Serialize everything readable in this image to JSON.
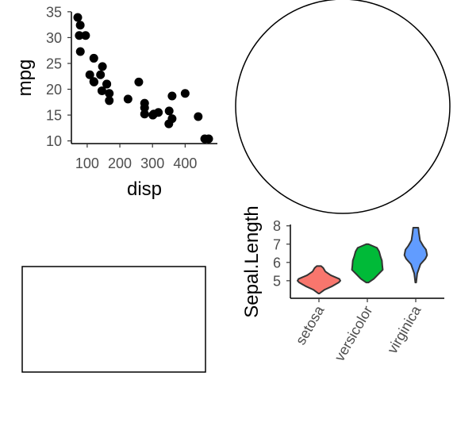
{
  "chart_data": [
    {
      "type": "scatter",
      "xlabel": "disp",
      "ylabel": "mpg",
      "xlim": [
        71.1,
        472
      ],
      "ylim": [
        10.4,
        33.9
      ],
      "xticks": [
        100,
        200,
        300,
        400
      ],
      "xtick_labels": [
        "100",
        "200",
        "300",
        "400"
      ],
      "yticks": [
        10,
        15,
        20,
        25,
        30,
        35
      ],
      "ytick_labels": [
        "10",
        "15",
        "20",
        "25",
        "30",
        "35"
      ],
      "point_color": "#000000",
      "points": [
        {
          "x": 71.1,
          "y": 33.9
        },
        {
          "x": 75.7,
          "y": 30.4
        },
        {
          "x": 78.7,
          "y": 32.4
        },
        {
          "x": 79.0,
          "y": 27.3
        },
        {
          "x": 95.1,
          "y": 30.4
        },
        {
          "x": 108.0,
          "y": 22.8
        },
        {
          "x": 120.1,
          "y": 21.5
        },
        {
          "x": 120.3,
          "y": 26.0
        },
        {
          "x": 121.0,
          "y": 21.4
        },
        {
          "x": 140.8,
          "y": 22.8
        },
        {
          "x": 145.0,
          "y": 19.7
        },
        {
          "x": 146.7,
          "y": 24.4
        },
        {
          "x": 160.0,
          "y": 21.0
        },
        {
          "x": 160.0,
          "y": 21.0
        },
        {
          "x": 167.6,
          "y": 19.2
        },
        {
          "x": 167.6,
          "y": 17.8
        },
        {
          "x": 225.0,
          "y": 18.1
        },
        {
          "x": 258.0,
          "y": 21.4
        },
        {
          "x": 275.8,
          "y": 16.4
        },
        {
          "x": 275.8,
          "y": 17.3
        },
        {
          "x": 275.8,
          "y": 15.2
        },
        {
          "x": 301.0,
          "y": 15.0
        },
        {
          "x": 304.0,
          "y": 15.2
        },
        {
          "x": 318.0,
          "y": 15.5
        },
        {
          "x": 350.0,
          "y": 13.3
        },
        {
          "x": 351.0,
          "y": 15.8
        },
        {
          "x": 360.0,
          "y": 18.7
        },
        {
          "x": 360.0,
          "y": 14.3
        },
        {
          "x": 400.0,
          "y": 19.2
        },
        {
          "x": 440.0,
          "y": 14.7
        },
        {
          "x": 460.0,
          "y": 10.4
        },
        {
          "x": 472.0,
          "y": 10.4
        }
      ]
    },
    {
      "type": "pie",
      "slices": [
        {
          "value": 1
        }
      ],
      "fill": "#ffffff",
      "stroke": "#000000"
    },
    {
      "type": "violin",
      "xlabel": "",
      "ylabel": "Sepal.Length",
      "categories": [
        "setosa",
        "versicolor",
        "virginica"
      ],
      "colors": [
        "#F8766D",
        "#00BA38",
        "#619CFF"
      ],
      "ylim": [
        4.3,
        7.9
      ],
      "yticks": [
        5,
        6,
        7,
        8
      ],
      "ytick_labels": [
        "5",
        "6",
        "7",
        "8"
      ],
      "series": [
        {
          "name": "setosa",
          "min": 4.3,
          "max": 5.8,
          "profile": [
            [
              4.3,
              0.02
            ],
            [
              4.5,
              0.25
            ],
            [
              4.7,
              0.62
            ],
            [
              4.9,
              0.92
            ],
            [
              5.0,
              1.0
            ],
            [
              5.1,
              0.95
            ],
            [
              5.3,
              0.55
            ],
            [
              5.5,
              0.3
            ],
            [
              5.7,
              0.2
            ],
            [
              5.8,
              0.1
            ]
          ]
        },
        {
          "name": "versicolor",
          "min": 4.9,
          "max": 7.0,
          "profile": [
            [
              4.9,
              0.05
            ],
            [
              5.1,
              0.3
            ],
            [
              5.4,
              0.55
            ],
            [
              5.6,
              0.72
            ],
            [
              5.8,
              0.7
            ],
            [
              6.1,
              0.68
            ],
            [
              6.3,
              0.62
            ],
            [
              6.6,
              0.55
            ],
            [
              6.8,
              0.45
            ],
            [
              7.0,
              0.05
            ]
          ]
        },
        {
          "name": "virginica",
          "min": 4.9,
          "max": 7.9,
          "profile": [
            [
              4.9,
              0.02
            ],
            [
              5.4,
              0.07
            ],
            [
              5.9,
              0.22
            ],
            [
              6.2,
              0.45
            ],
            [
              6.4,
              0.53
            ],
            [
              6.7,
              0.48
            ],
            [
              6.9,
              0.35
            ],
            [
              7.2,
              0.2
            ],
            [
              7.6,
              0.15
            ],
            [
              7.9,
              0.12
            ]
          ]
        }
      ]
    },
    {
      "type": "other",
      "shape": "rectangle",
      "fill": "#ffffff",
      "stroke": "#000000"
    }
  ]
}
